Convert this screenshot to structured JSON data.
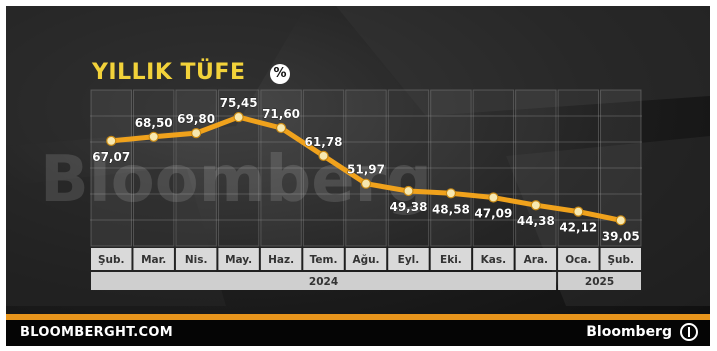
{
  "title": "YILLIK TÜFE",
  "title_badge": "%",
  "footer": {
    "site": "BLOOMBERGHT.COM",
    "brand": "Bloomberg",
    "brand_icon": "bloomberg-globe-icon"
  },
  "colors": {
    "line": "#f0a21c",
    "title": "#f2d23a",
    "accent_band": "#e8951c"
  },
  "chart_data": {
    "type": "line",
    "categories": [
      "Şub.",
      "Mar.",
      "Nis.",
      "May.",
      "Haz.",
      "Tem.",
      "Ağu.",
      "Eyl.",
      "Eki.",
      "Kas.",
      "Ara.",
      "Oca.",
      "Şub."
    ],
    "values": [
      67.07,
      68.5,
      69.8,
      75.45,
      71.6,
      61.78,
      51.97,
      49.38,
      48.58,
      47.09,
      44.38,
      42.12,
      39.05
    ],
    "value_labels": [
      "67,07",
      "68,50",
      "69,80",
      "75,45",
      "71,60",
      "61,78",
      "51,97",
      "49,38",
      "48,58",
      "47,09",
      "44,38",
      "42,12",
      "39,05"
    ],
    "years": [
      {
        "label": "2024",
        "from": 0,
        "to": 10
      },
      {
        "label": "2025",
        "from": 11,
        "to": 12
      }
    ],
    "title": "YILLIK TÜFE",
    "ylim": [
      30,
      85
    ],
    "grid": true,
    "watermark": "Bloomberg"
  }
}
